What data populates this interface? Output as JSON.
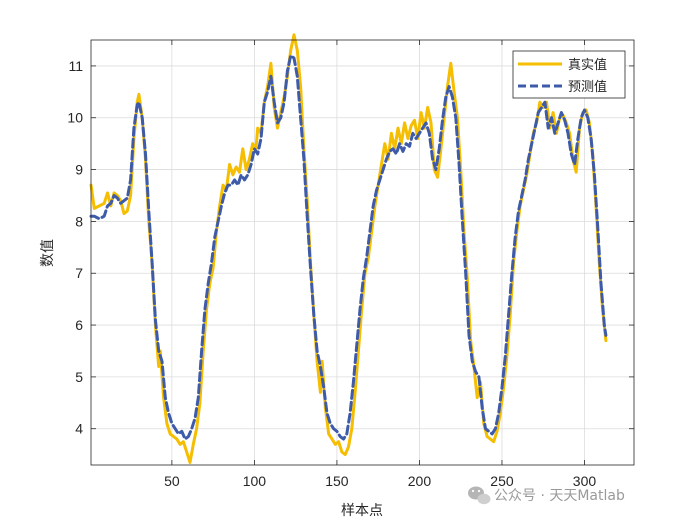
{
  "chart_data": {
    "type": "line",
    "xlabel": "样本点",
    "ylabel": "数值",
    "xlim": [
      1,
      330
    ],
    "ylim": [
      3.3,
      11.5
    ],
    "xticks": [
      50,
      100,
      150,
      200,
      250,
      300
    ],
    "yticks": [
      4,
      5,
      6,
      7,
      8,
      9,
      10,
      11
    ],
    "grid": true,
    "legend_position": "top-right",
    "series": [
      {
        "name": "真实值",
        "color": "#F5BE00",
        "style": "solid",
        "points": [
          [
            1,
            8.7
          ],
          [
            3,
            8.25
          ],
          [
            6,
            8.3
          ],
          [
            9,
            8.35
          ],
          [
            11,
            8.55
          ],
          [
            13,
            8.3
          ],
          [
            15,
            8.55
          ],
          [
            17,
            8.5
          ],
          [
            19,
            8.4
          ],
          [
            21,
            8.15
          ],
          [
            23,
            8.2
          ],
          [
            25,
            8.5
          ],
          [
            27,
            9.6
          ],
          [
            29,
            10.3
          ],
          [
            30,
            10.45
          ],
          [
            32,
            10.0
          ],
          [
            34,
            9.2
          ],
          [
            36,
            8.0
          ],
          [
            38,
            7.2
          ],
          [
            40,
            6.0
          ],
          [
            42,
            5.2
          ],
          [
            43,
            5.5
          ],
          [
            45,
            4.6
          ],
          [
            47,
            4.1
          ],
          [
            49,
            3.9
          ],
          [
            51,
            3.85
          ],
          [
            53,
            3.8
          ],
          [
            55,
            3.7
          ],
          [
            57,
            3.75
          ],
          [
            59,
            3.55
          ],
          [
            61,
            3.35
          ],
          [
            63,
            3.7
          ],
          [
            65,
            4.0
          ],
          [
            67,
            4.5
          ],
          [
            69,
            5.5
          ],
          [
            71,
            6.3
          ],
          [
            73,
            6.8
          ],
          [
            75,
            7.1
          ],
          [
            77,
            7.8
          ],
          [
            79,
            8.3
          ],
          [
            81,
            8.7
          ],
          [
            83,
            8.6
          ],
          [
            85,
            9.1
          ],
          [
            87,
            8.9
          ],
          [
            89,
            9.05
          ],
          [
            91,
            8.95
          ],
          [
            93,
            9.4
          ],
          [
            95,
            9.0
          ],
          [
            97,
            9.2
          ],
          [
            99,
            9.5
          ],
          [
            101,
            9.4
          ],
          [
            102,
            9.8
          ],
          [
            104,
            9.7
          ],
          [
            106,
            10.3
          ],
          [
            108,
            10.6
          ],
          [
            110,
            11.05
          ],
          [
            112,
            10.2
          ],
          [
            114,
            9.8
          ],
          [
            116,
            10.1
          ],
          [
            118,
            10.4
          ],
          [
            120,
            10.8
          ],
          [
            122,
            11.3
          ],
          [
            124,
            11.6
          ],
          [
            126,
            11.3
          ],
          [
            128,
            10.6
          ],
          [
            130,
            9.4
          ],
          [
            132,
            8.4
          ],
          [
            134,
            7.2
          ],
          [
            136,
            6.2
          ],
          [
            138,
            5.3
          ],
          [
            140,
            4.7
          ],
          [
            141,
            5.3
          ],
          [
            143,
            4.4
          ],
          [
            145,
            3.9
          ],
          [
            147,
            3.8
          ],
          [
            149,
            3.7
          ],
          [
            151,
            3.75
          ],
          [
            153,
            3.55
          ],
          [
            155,
            3.5
          ],
          [
            157,
            3.65
          ],
          [
            159,
            4.0
          ],
          [
            161,
            4.7
          ],
          [
            163,
            5.5
          ],
          [
            165,
            6.3
          ],
          [
            167,
            7.0
          ],
          [
            169,
            7.3
          ],
          [
            171,
            7.8
          ],
          [
            173,
            8.3
          ],
          [
            175,
            8.7
          ],
          [
            177,
            9.1
          ],
          [
            179,
            9.5
          ],
          [
            181,
            9.2
          ],
          [
            183,
            9.7
          ],
          [
            185,
            9.4
          ],
          [
            187,
            9.8
          ],
          [
            189,
            9.5
          ],
          [
            191,
            9.9
          ],
          [
            193,
            9.6
          ],
          [
            195,
            9.85
          ],
          [
            197,
            9.95
          ],
          [
            199,
            9.6
          ],
          [
            201,
            10.1
          ],
          [
            203,
            9.8
          ],
          [
            205,
            10.2
          ],
          [
            207,
            9.9
          ],
          [
            209,
            9.0
          ],
          [
            211,
            8.85
          ],
          [
            213,
            9.4
          ],
          [
            215,
            10.0
          ],
          [
            217,
            10.6
          ],
          [
            219,
            11.05
          ],
          [
            221,
            10.5
          ],
          [
            223,
            10.0
          ],
          [
            225,
            9.0
          ],
          [
            227,
            7.8
          ],
          [
            229,
            6.9
          ],
          [
            231,
            5.7
          ],
          [
            233,
            5.2
          ],
          [
            235,
            4.6
          ],
          [
            237,
            4.9
          ],
          [
            239,
            4.1
          ],
          [
            241,
            3.85
          ],
          [
            243,
            3.8
          ],
          [
            245,
            3.75
          ],
          [
            247,
            3.95
          ],
          [
            249,
            4.3
          ],
          [
            251,
            4.8
          ],
          [
            253,
            5.4
          ],
          [
            255,
            6.2
          ],
          [
            257,
            7.2
          ],
          [
            259,
            7.8
          ],
          [
            261,
            8.3
          ],
          [
            263,
            8.6
          ],
          [
            265,
            8.9
          ],
          [
            267,
            9.3
          ],
          [
            269,
            9.7
          ],
          [
            271,
            9.9
          ],
          [
            273,
            10.3
          ],
          [
            275,
            10.2
          ],
          [
            277,
            10.3
          ],
          [
            279,
            9.8
          ],
          [
            281,
            10.1
          ],
          [
            283,
            9.7
          ],
          [
            285,
            10.0
          ],
          [
            287,
            10.05
          ],
          [
            289,
            9.9
          ],
          [
            291,
            9.7
          ],
          [
            293,
            9.2
          ],
          [
            295,
            8.95
          ],
          [
            297,
            9.8
          ],
          [
            299,
            10.1
          ],
          [
            301,
            10.15
          ],
          [
            303,
            9.9
          ],
          [
            305,
            9.3
          ],
          [
            307,
            8.3
          ],
          [
            309,
            7.2
          ],
          [
            311,
            6.3
          ],
          [
            313,
            5.7
          ]
        ]
      },
      {
        "name": "预测值",
        "color": "#3E5BA9",
        "style": "dashed",
        "points": [
          [
            1,
            8.1
          ],
          [
            3,
            8.1
          ],
          [
            6,
            8.05
          ],
          [
            9,
            8.1
          ],
          [
            11,
            8.3
          ],
          [
            13,
            8.35
          ],
          [
            15,
            8.5
          ],
          [
            17,
            8.45
          ],
          [
            19,
            8.35
          ],
          [
            21,
            8.4
          ],
          [
            23,
            8.45
          ],
          [
            25,
            8.8
          ],
          [
            27,
            9.8
          ],
          [
            29,
            10.25
          ],
          [
            30,
            10.3
          ],
          [
            32,
            10.0
          ],
          [
            34,
            9.3
          ],
          [
            36,
            8.2
          ],
          [
            38,
            7.2
          ],
          [
            40,
            6.1
          ],
          [
            42,
            5.5
          ],
          [
            44,
            5.3
          ],
          [
            46,
            4.6
          ],
          [
            48,
            4.3
          ],
          [
            50,
            4.1
          ],
          [
            52,
            4.0
          ],
          [
            54,
            3.9
          ],
          [
            56,
            3.95
          ],
          [
            58,
            3.8
          ],
          [
            60,
            3.85
          ],
          [
            62,
            4.0
          ],
          [
            64,
            4.2
          ],
          [
            66,
            4.6
          ],
          [
            68,
            5.5
          ],
          [
            70,
            6.3
          ],
          [
            72,
            6.8
          ],
          [
            74,
            7.2
          ],
          [
            76,
            7.7
          ],
          [
            78,
            8.0
          ],
          [
            80,
            8.3
          ],
          [
            82,
            8.55
          ],
          [
            84,
            8.7
          ],
          [
            86,
            8.7
          ],
          [
            88,
            8.8
          ],
          [
            90,
            8.7
          ],
          [
            92,
            8.9
          ],
          [
            94,
            8.8
          ],
          [
            96,
            8.9
          ],
          [
            98,
            9.1
          ],
          [
            100,
            9.4
          ],
          [
            102,
            9.3
          ],
          [
            104,
            9.6
          ],
          [
            106,
            10.3
          ],
          [
            108,
            10.5
          ],
          [
            110,
            10.8
          ],
          [
            112,
            10.3
          ],
          [
            114,
            9.9
          ],
          [
            116,
            10.0
          ],
          [
            118,
            10.3
          ],
          [
            120,
            10.9
          ],
          [
            122,
            11.2
          ],
          [
            124,
            11.15
          ],
          [
            126,
            10.8
          ],
          [
            128,
            10.0
          ],
          [
            130,
            9.2
          ],
          [
            132,
            8.1
          ],
          [
            134,
            7.1
          ],
          [
            136,
            6.2
          ],
          [
            138,
            5.5
          ],
          [
            140,
            5.2
          ],
          [
            142,
            4.8
          ],
          [
            144,
            4.3
          ],
          [
            146,
            4.1
          ],
          [
            148,
            4.0
          ],
          [
            150,
            3.95
          ],
          [
            152,
            3.85
          ],
          [
            154,
            3.8
          ],
          [
            156,
            3.9
          ],
          [
            158,
            4.3
          ],
          [
            160,
            4.9
          ],
          [
            162,
            5.6
          ],
          [
            164,
            6.3
          ],
          [
            166,
            6.9
          ],
          [
            168,
            7.3
          ],
          [
            170,
            7.8
          ],
          [
            172,
            8.3
          ],
          [
            174,
            8.6
          ],
          [
            176,
            8.8
          ],
          [
            178,
            9.0
          ],
          [
            180,
            9.2
          ],
          [
            182,
            9.35
          ],
          [
            184,
            9.4
          ],
          [
            186,
            9.3
          ],
          [
            188,
            9.5
          ],
          [
            190,
            9.35
          ],
          [
            192,
            9.5
          ],
          [
            194,
            9.45
          ],
          [
            196,
            9.7
          ],
          [
            198,
            9.6
          ],
          [
            200,
            9.7
          ],
          [
            202,
            9.8
          ],
          [
            204,
            9.9
          ],
          [
            206,
            9.7
          ],
          [
            208,
            9.2
          ],
          [
            210,
            9.0
          ],
          [
            212,
            9.4
          ],
          [
            214,
            9.95
          ],
          [
            216,
            10.4
          ],
          [
            218,
            10.6
          ],
          [
            220,
            10.4
          ],
          [
            222,
            10.0
          ],
          [
            224,
            9.1
          ],
          [
            226,
            8.0
          ],
          [
            228,
            7.0
          ],
          [
            230,
            5.8
          ],
          [
            232,
            5.3
          ],
          [
            234,
            5.1
          ],
          [
            236,
            5.0
          ],
          [
            238,
            4.4
          ],
          [
            240,
            4.0
          ],
          [
            242,
            3.95
          ],
          [
            244,
            3.9
          ],
          [
            246,
            4.0
          ],
          [
            248,
            4.3
          ],
          [
            250,
            4.8
          ],
          [
            252,
            5.4
          ],
          [
            254,
            6.2
          ],
          [
            256,
            7.0
          ],
          [
            258,
            7.7
          ],
          [
            260,
            8.2
          ],
          [
            262,
            8.5
          ],
          [
            264,
            8.8
          ],
          [
            266,
            9.2
          ],
          [
            268,
            9.5
          ],
          [
            270,
            9.8
          ],
          [
            272,
            10.1
          ],
          [
            274,
            10.2
          ],
          [
            276,
            10.3
          ],
          [
            278,
            9.8
          ],
          [
            280,
            10.0
          ],
          [
            282,
            9.7
          ],
          [
            284,
            9.9
          ],
          [
            286,
            10.1
          ],
          [
            288,
            9.95
          ],
          [
            290,
            9.7
          ],
          [
            292,
            9.3
          ],
          [
            294,
            9.1
          ],
          [
            296,
            9.6
          ],
          [
            298,
            10.0
          ],
          [
            300,
            10.15
          ],
          [
            302,
            10.0
          ],
          [
            304,
            9.6
          ],
          [
            306,
            8.9
          ],
          [
            308,
            7.9
          ],
          [
            310,
            6.8
          ],
          [
            312,
            6.0
          ],
          [
            313,
            5.8
          ]
        ]
      }
    ]
  },
  "watermark": {
    "text": "公众号 · 天天Matlab",
    "icon": "wechat-icon"
  }
}
